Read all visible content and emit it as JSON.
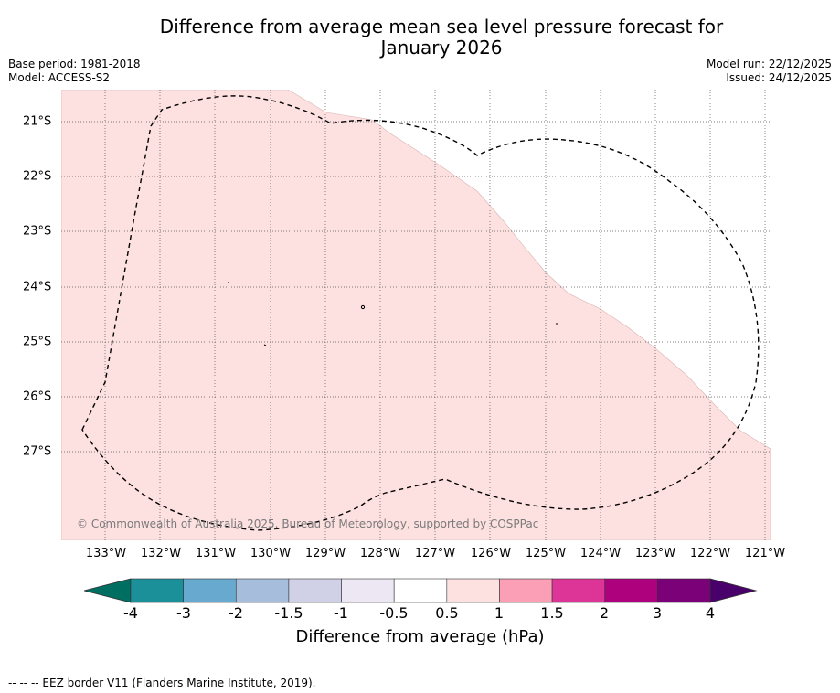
{
  "header": {
    "title_line1": "Difference from average mean sea level pressure forecast for",
    "title_line2": "January 2026",
    "base_period": "Base period: 1981-2018",
    "model": "Model: ACCESS-S2",
    "model_run": "Model run: 22/12/2025",
    "issued": "Issued: 24/12/2025"
  },
  "map": {
    "x_labels": [
      "133°W",
      "132°W",
      "131°W",
      "130°W",
      "129°W",
      "128°W",
      "127°W",
      "126°W",
      "125°W",
      "124°W",
      "123°W",
      "122°W",
      "121°W"
    ],
    "y_labels": [
      "21°S",
      "22°S",
      "23°S",
      "24°S",
      "25°S",
      "26°S",
      "27°S"
    ],
    "shaded_category": "0.5 to 1",
    "shaded_color": "#fde0e0",
    "credit": "© Commonwealth of Australia 2025, Bureau of Meteorology, supported by COSPPac"
  },
  "legend": {
    "tick_labels": [
      "-4",
      "-3",
      "-2",
      "-1.5",
      "-1",
      "-0.5",
      "0.5",
      "1",
      "1.5",
      "2",
      "3",
      "4"
    ],
    "colors": [
      "#006f62",
      "#1c9099",
      "#67a9cf",
      "#a6bddb",
      "#d0d1e6",
      "#ece7f2",
      "#ffffff",
      "#fde0e0",
      "#fa9fb5",
      "#dd3497",
      "#ae017e",
      "#7a0177",
      "#49006a"
    ],
    "label": "Difference from average (hPa)"
  },
  "footnote": "-- -- -- EEZ border V11 (Flanders Marine Institute, 2019)."
}
